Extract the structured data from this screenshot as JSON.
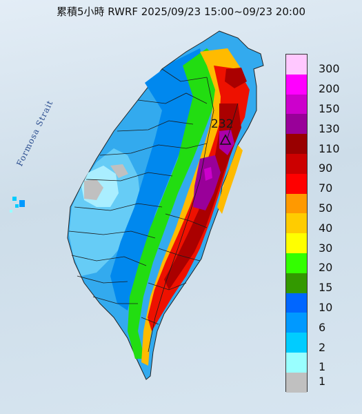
{
  "title": "累積5小時 RWRF 2025/09/23 15:00~09/23 20:00",
  "strait_label": "Formosa Strait",
  "peak": {
    "value": "232",
    "marker": "triangle-peak-icon"
  },
  "legend": [
    {
      "label": "300",
      "color": "#ffc8ff"
    },
    {
      "label": "200",
      "color": "#ff00ff"
    },
    {
      "label": "150",
      "color": "#cc00cc"
    },
    {
      "label": "130",
      "color": "#990099"
    },
    {
      "label": "110",
      "color": "#990000"
    },
    {
      "label": "90",
      "color": "#cc0000"
    },
    {
      "label": "70",
      "color": "#ff0000"
    },
    {
      "label": "50",
      "color": "#ff9900"
    },
    {
      "label": "40",
      "color": "#ffcc00"
    },
    {
      "label": "30",
      "color": "#ffff00"
    },
    {
      "label": "20",
      "color": "#33ff00"
    },
    {
      "label": "15",
      "color": "#339900"
    },
    {
      "label": "10",
      "color": "#0066ff"
    },
    {
      "label": "6",
      "color": "#0099ff"
    },
    {
      "label": "2",
      "color": "#00ccff"
    },
    {
      "label": "1",
      "color": "#99ffff"
    },
    {
      "label": "",
      "color": "#c0c0c0"
    }
  ]
}
